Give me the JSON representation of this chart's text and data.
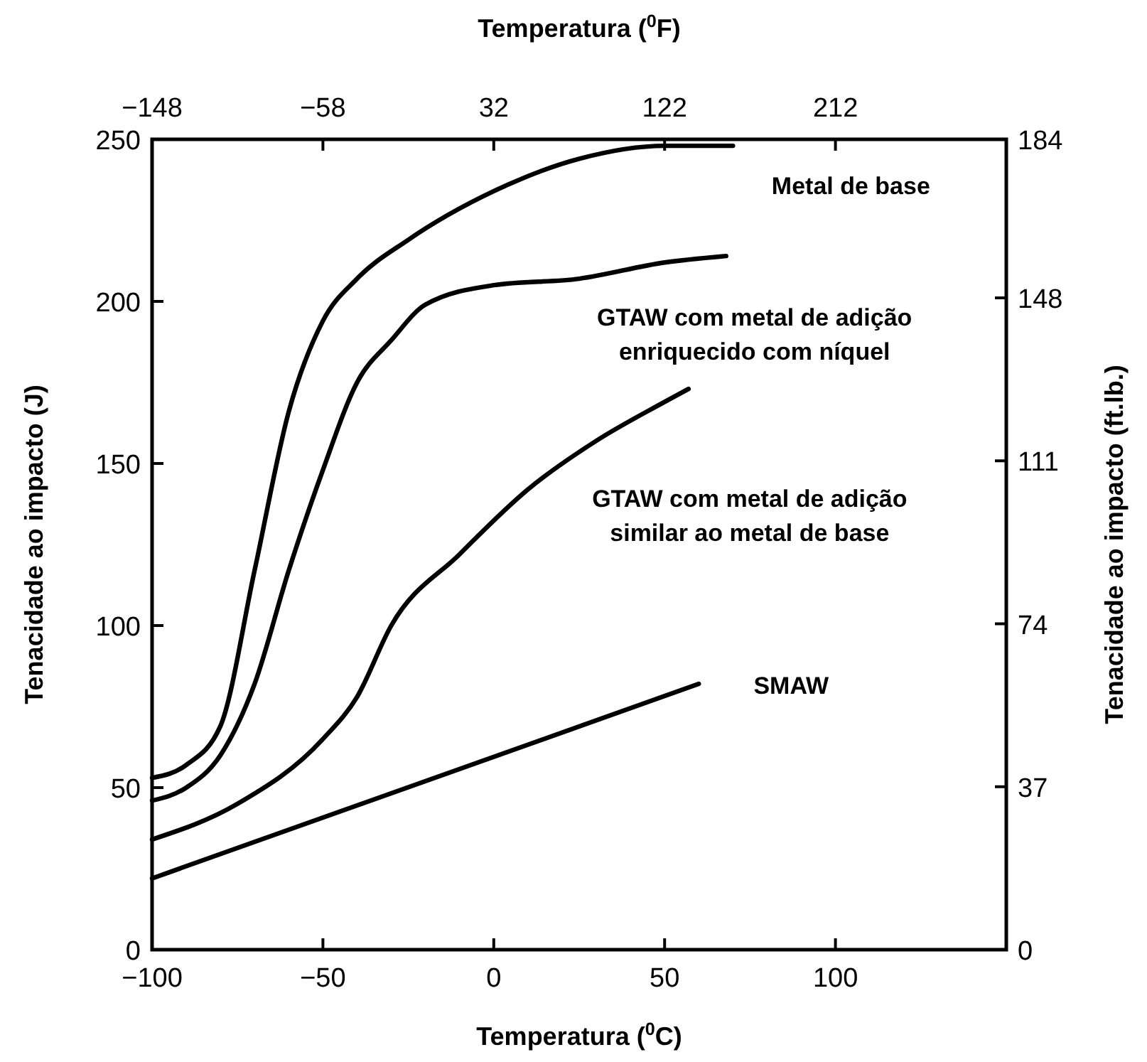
{
  "chart_data": {
    "type": "line",
    "xlabel": "Temperatura ($^{0}$C)",
    "x2label": "Temperatura ($^{0}$F)",
    "ylabel": "Tenacidade ao impacto (J)",
    "y2label": "Tenacidade ao impacto (ft.lb.)",
    "xlim": [
      -100,
      150
    ],
    "xticks": [
      -100,
      -50,
      0,
      50,
      100
    ],
    "x2lim": [
      -148,
      302
    ],
    "x2ticks": [
      -148,
      -58,
      32,
      122,
      212
    ],
    "ylim": [
      0,
      250
    ],
    "yticks": [
      0,
      50,
      100,
      150,
      200,
      250
    ],
    "y2lim": [
      0,
      184
    ],
    "y2ticks": [
      0,
      37,
      74,
      111,
      148,
      184
    ],
    "grid": false,
    "marker": "none",
    "line_style": "solid",
    "series": [
      {
        "name": "Metal de base",
        "color": "#000000",
        "x": [
          -100,
          -90,
          -80,
          -70,
          -60,
          -50,
          -40,
          -25,
          0,
          25,
          50,
          70
        ],
        "values": [
          53,
          57,
          69,
          117,
          166,
          194,
          207,
          219,
          234,
          244,
          248,
          248
        ]
      },
      {
        "name": "GTAW com metal de adição\nenriquecido com níquel",
        "color": "#000000",
        "x": [
          -100,
          -90,
          -80,
          -70,
          -60,
          -50,
          -40,
          -30,
          -20,
          0,
          25,
          50,
          68
        ],
        "values": [
          46,
          50,
          60,
          82,
          117,
          148,
          175,
          188,
          199,
          205,
          207,
          212,
          214
        ]
      },
      {
        "name": "GTAW com metal de adição\nsimilar ao metal de base",
        "color": "#000000",
        "x": [
          -100,
          -75,
          -50,
          -40,
          -30,
          -10,
          10,
          30,
          50,
          57
        ],
        "values": [
          34,
          45,
          65,
          78,
          100,
          122,
          142,
          157,
          169,
          173
        ]
      },
      {
        "name": "SMAW",
        "color": "#000000",
        "x": [
          -100,
          60
        ],
        "values": [
          22,
          82
        ]
      }
    ]
  }
}
